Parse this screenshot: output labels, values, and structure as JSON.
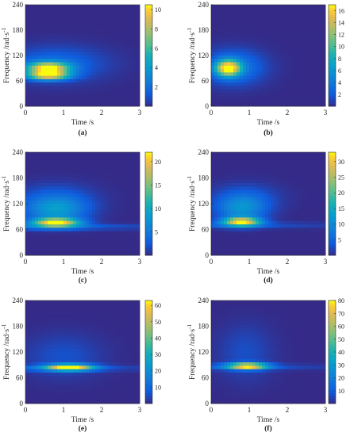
{
  "chart_data": [
    {
      "type": "heatmap",
      "panel_label": "(a)",
      "xlabel": "Time /s",
      "ylabel": "Frequency /rad·s",
      "ylabel_sup": "-1",
      "xlim": [
        0,
        3
      ],
      "ylim": [
        0,
        240
      ],
      "xticks": [
        "0",
        "1",
        "2",
        "3"
      ],
      "yticks": [
        "0",
        "60",
        "120",
        "180",
        "240"
      ],
      "colorbar": {
        "range": [
          0,
          10.5
        ],
        "ticks": [
          "2",
          "4",
          "6",
          "8",
          "10"
        ],
        "tick_values": [
          2,
          4,
          6,
          8,
          10
        ]
      },
      "blobs": [
        {
          "t": 0.6,
          "f": 90,
          "st": 0.38,
          "sf": 10,
          "amp": 10
        },
        {
          "t": 0.6,
          "f": 72,
          "st": 0.38,
          "sf": 7,
          "amp": 8.5
        },
        {
          "t": 0.8,
          "f": 100,
          "st": 0.9,
          "sf": 28,
          "amp": 1.8
        }
      ],
      "ridges": []
    },
    {
      "type": "heatmap",
      "panel_label": "(b)",
      "xlabel": "Time /s",
      "ylabel": "Frequency /rad·s",
      "ylabel_sup": "-1",
      "xlim": [
        0,
        3
      ],
      "ylim": [
        0,
        240
      ],
      "xticks": [
        "0",
        "1",
        "2",
        "3"
      ],
      "yticks": [
        "0",
        "60",
        "120",
        "180",
        "240"
      ],
      "colorbar": {
        "range": [
          0,
          17
        ],
        "ticks": [
          "2",
          "4",
          "6",
          "8",
          "10",
          "12",
          "14",
          "16"
        ],
        "tick_values": [
          2,
          4,
          6,
          8,
          10,
          12,
          14,
          16
        ]
      },
      "blobs": [
        {
          "t": 0.45,
          "f": 90,
          "st": 0.22,
          "sf": 13,
          "amp": 16.5
        },
        {
          "t": 0.6,
          "f": 92,
          "st": 0.55,
          "sf": 28,
          "amp": 4
        }
      ],
      "ridges": []
    },
    {
      "type": "heatmap",
      "panel_label": "(c)",
      "xlabel": "Time /s",
      "ylabel": "Frequency /rad·s",
      "ylabel_sup": "-1",
      "xlim": [
        0,
        3
      ],
      "ylim": [
        0,
        240
      ],
      "xticks": [
        "0",
        "1",
        "2",
        "3"
      ],
      "yticks": [
        "0",
        "60",
        "120",
        "180",
        "240"
      ],
      "colorbar": {
        "range": [
          0,
          22
        ],
        "ticks": [
          "5",
          "10",
          "15",
          "20"
        ],
        "tick_values": [
          5,
          10,
          15,
          20
        ]
      },
      "blobs": [
        {
          "t": 0.8,
          "f": 76,
          "st": 0.42,
          "sf": 7,
          "amp": 21
        },
        {
          "t": 0.8,
          "f": 105,
          "st": 0.55,
          "sf": 20,
          "amp": 7
        },
        {
          "t": 0.8,
          "f": 130,
          "st": 0.7,
          "sf": 25,
          "amp": 3
        }
      ],
      "ridges": [
        {
          "f": 66,
          "sf": 5,
          "amp": 3.5,
          "t0": 1.2,
          "decay": 2.2
        }
      ]
    },
    {
      "type": "heatmap",
      "panel_label": "(d)",
      "xlabel": "Time /s",
      "ylabel": "Frequency /rad·s",
      "ylabel_sup": "-1",
      "xlim": [
        0,
        3
      ],
      "ylim": [
        0,
        240
      ],
      "xticks": [
        "0",
        "1",
        "2",
        "3"
      ],
      "yticks": [
        "0",
        "60",
        "120",
        "180",
        "240"
      ],
      "colorbar": {
        "range": [
          0,
          33
        ],
        "ticks": [
          "5",
          "10",
          "15",
          "20",
          "25",
          "30"
        ],
        "tick_values": [
          5,
          10,
          15,
          20,
          25,
          30
        ]
      },
      "blobs": [
        {
          "t": 0.8,
          "f": 78,
          "st": 0.33,
          "sf": 7,
          "amp": 31
        },
        {
          "t": 0.8,
          "f": 108,
          "st": 0.45,
          "sf": 20,
          "amp": 10
        },
        {
          "t": 0.9,
          "f": 135,
          "st": 0.6,
          "sf": 22,
          "amp": 4
        }
      ],
      "ridges": [
        {
          "f": 70,
          "sf": 5,
          "amp": 4,
          "t0": 1.1,
          "decay": 2.0
        }
      ]
    },
    {
      "type": "heatmap",
      "panel_label": "(e)",
      "xlabel": "Time /s",
      "ylabel": "Frequency /rad·s",
      "ylabel_sup": "-1",
      "xlim": [
        0,
        3
      ],
      "ylim": [
        0,
        240
      ],
      "xticks": [
        "0",
        "1",
        "2",
        "3"
      ],
      "yticks": [
        "0",
        "60",
        "120",
        "180",
        "240"
      ],
      "colorbar": {
        "range": [
          0,
          63
        ],
        "ticks": [
          "10",
          "20",
          "30",
          "40",
          "50",
          "60"
        ],
        "tick_values": [
          10,
          20,
          30,
          40,
          50,
          60
        ]
      },
      "blobs": [
        {
          "t": 1.15,
          "f": 84,
          "st": 0.42,
          "sf": 5,
          "amp": 62
        },
        {
          "t": 1.0,
          "f": 110,
          "st": 0.7,
          "sf": 35,
          "amp": 6
        }
      ],
      "ridges": [
        {
          "f": 82,
          "sf": 5,
          "amp": 8,
          "t0": 1.5,
          "decay": 1.6
        }
      ]
    },
    {
      "type": "heatmap",
      "panel_label": "(f)",
      "xlabel": "Time /s",
      "ylabel": "Frequency /rad·s",
      "ylabel_sup": "-1",
      "xlim": [
        0,
        3
      ],
      "ylim": [
        0,
        240
      ],
      "xticks": [
        "0",
        "1",
        "2",
        "3"
      ],
      "yticks": [
        "0",
        "60",
        "120",
        "180",
        "240"
      ],
      "colorbar": {
        "range": [
          0,
          80
        ],
        "ticks": [
          "10",
          "20",
          "30",
          "40",
          "50",
          "60",
          "70",
          "80"
        ],
        "tick_values": [
          10,
          20,
          30,
          40,
          50,
          60,
          70,
          80
        ]
      },
      "blobs": [
        {
          "t": 0.95,
          "f": 87,
          "st": 0.35,
          "sf": 5,
          "amp": 78
        },
        {
          "t": 0.9,
          "f": 118,
          "st": 0.5,
          "sf": 45,
          "amp": 7
        }
      ],
      "ridges": [
        {
          "f": 85,
          "sf": 5,
          "amp": 9,
          "t0": 1.3,
          "decay": 1.8
        }
      ]
    }
  ]
}
